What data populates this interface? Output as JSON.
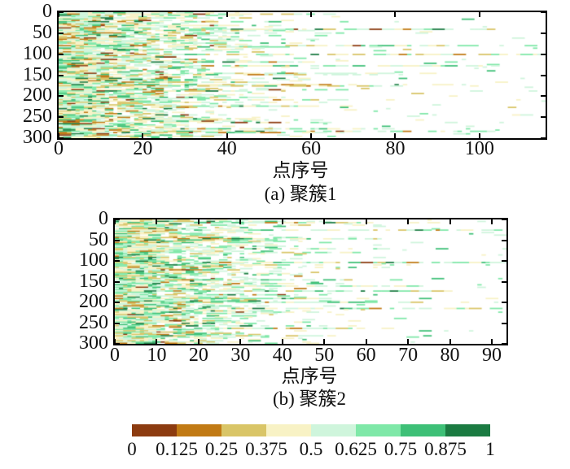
{
  "figure": {
    "background": "#ffffff",
    "text_color": "#111111"
  },
  "chart_data": [
    {
      "type": "heatmap",
      "caption": "(a) 聚簇1",
      "xlabel": "点序号",
      "x_ticks": [
        "0",
        "20",
        "40",
        "60",
        "80",
        "100"
      ],
      "x_tick_values": [
        0,
        20,
        40,
        60,
        80,
        100
      ],
      "y_ticks": [
        "0",
        "50",
        "100",
        "150",
        "200",
        "250",
        "300"
      ],
      "y_tick_values": [
        0,
        50,
        100,
        150,
        200,
        250,
        300
      ],
      "x_range": [
        0,
        115.7
      ],
      "y_range": [
        0,
        300
      ],
      "grid": false,
      "legend": "shared discrete colorbar below",
      "colormap": "8-bin discrete brown-to-green, domain 0-1",
      "pattern": "dense multicolor horizontal streaks at left fading to white toward right; a few rows extend past x=80 up to ~100",
      "gen": {
        "seed": 987231,
        "rows": 100,
        "cols": 116,
        "full_until": 10,
        "base_extent": 22,
        "extent_scale": 16,
        "long_row_prob": 0.055,
        "long_row_extra": 75,
        "value_mean": 0.52,
        "value_sd": 0.2,
        "tail_mean": 0.55,
        "tail_sd": 0.12
      }
    },
    {
      "type": "heatmap",
      "caption": "(b) 聚簇2",
      "xlabel": "点序号",
      "x_ticks": [
        "0",
        "10",
        "20",
        "30",
        "40",
        "50",
        "60",
        "70",
        "80",
        "90"
      ],
      "x_tick_values": [
        0,
        10,
        20,
        30,
        40,
        50,
        60,
        70,
        80,
        90
      ],
      "y_ticks": [
        "0",
        "50",
        "100",
        "150",
        "200",
        "250",
        "300"
      ],
      "y_tick_values": [
        0,
        50,
        100,
        150,
        200,
        250,
        300
      ],
      "x_range": [
        0,
        93.5
      ],
      "y_range": [
        0,
        300
      ],
      "grid": false,
      "legend": "shared discrete colorbar below",
      "colormap": "8-bin discrete brown-to-green, domain 0-1",
      "pattern": "dense green-dominant streaks at left fading to white; sparse streaks reach x=65-93",
      "gen": {
        "seed": 552701,
        "rows": 100,
        "cols": 94,
        "full_until": 10,
        "base_extent": 20,
        "extent_scale": 14,
        "long_row_prob": 0.055,
        "long_row_extra": 60,
        "value_mean": 0.55,
        "value_sd": 0.19,
        "tail_mean": 0.56,
        "tail_sd": 0.12
      }
    }
  ],
  "colorbar": {
    "labels": [
      "0",
      "0.125",
      "0.25",
      "0.375",
      "0.5",
      "0.625",
      "0.75",
      "0.875",
      "1"
    ],
    "values": [
      0,
      0.125,
      0.25,
      0.375,
      0.5,
      0.625,
      0.75,
      0.875,
      1
    ],
    "colors": [
      "#8c3b10",
      "#c17a14",
      "#d9c567",
      "#f8f2c5",
      "#cff5dc",
      "#7fe8a8",
      "#3ec077",
      "#1b7b42"
    ]
  }
}
